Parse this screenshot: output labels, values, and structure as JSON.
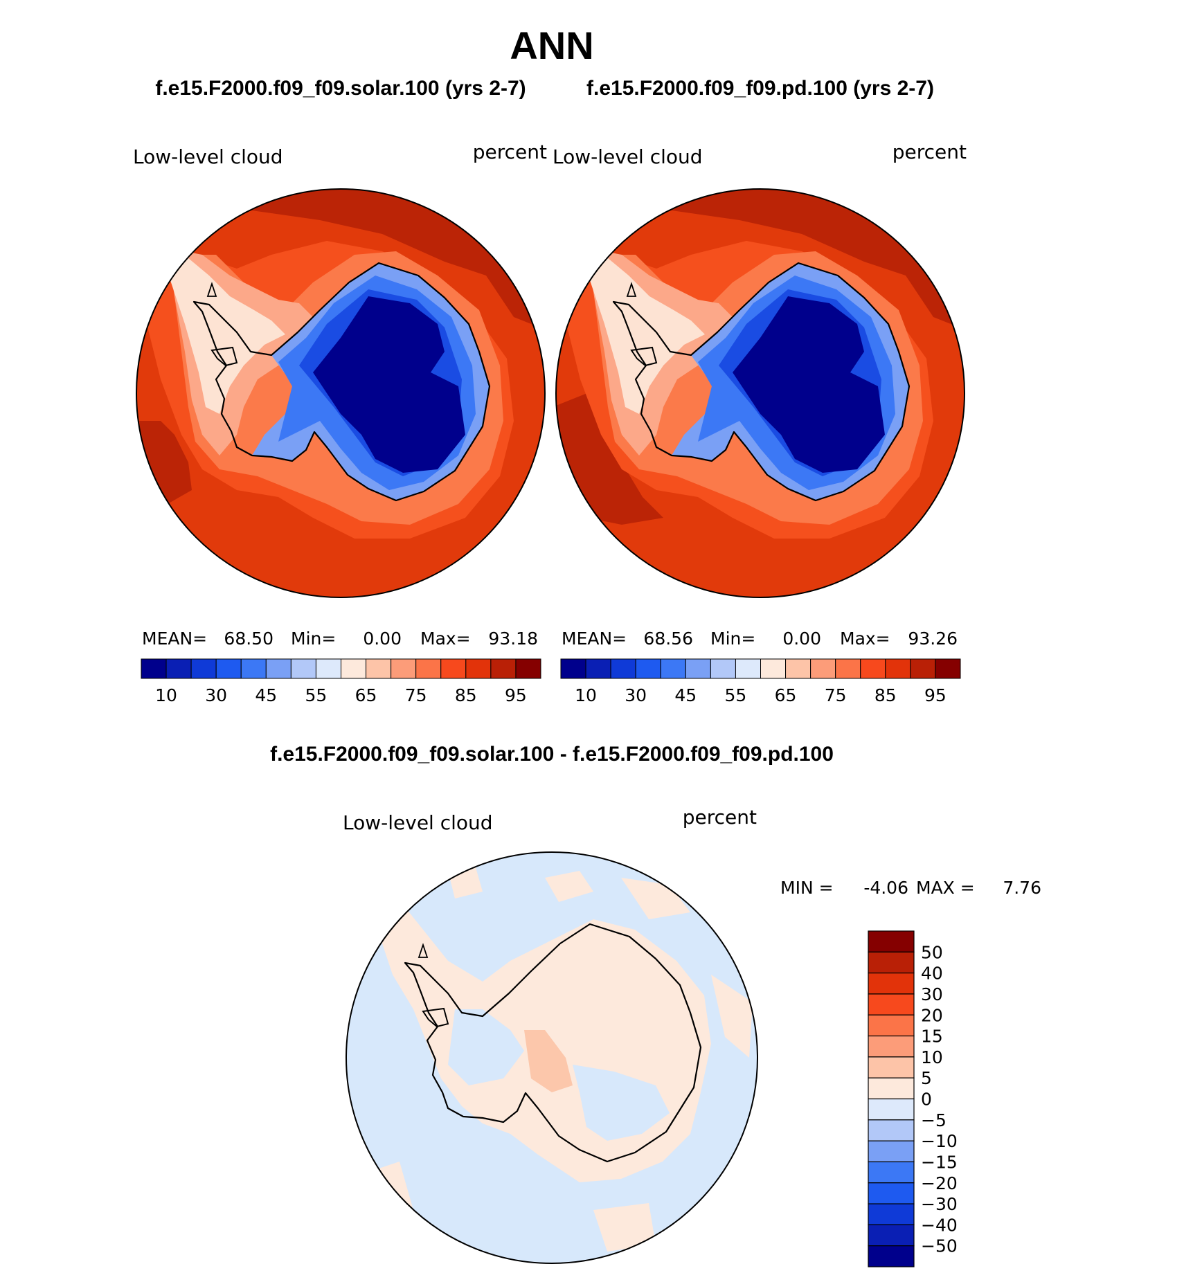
{
  "title": "ANN",
  "panels": [
    {
      "case_label": "f.e15.F2000.f09_f09.solar.100 (yrs 2-7)",
      "variable": "Low-level cloud",
      "units": "percent",
      "stats": {
        "mean_label": "MEAN=",
        "mean": "68.50",
        "min_label": "Min=",
        "min": "0.00",
        "max_label": "Max=",
        "max": "93.18"
      }
    },
    {
      "case_label": "f.e15.F2000.f09_f09.pd.100 (yrs 2-7)",
      "variable": "Low-level cloud",
      "units": "percent",
      "stats": {
        "mean_label": "MEAN=",
        "mean": "68.56",
        "min_label": "Min=",
        "min": "0.00",
        "max_label": "Max=",
        "max": "93.26"
      }
    }
  ],
  "mean_colorbar": {
    "colors": [
      "#00008c",
      "#0a1fb4",
      "#0f3ad7",
      "#1e5af0",
      "#3c78f5",
      "#7aa0f5",
      "#b2c8f8",
      "#dde9fb",
      "#fde9dc",
      "#fdc4a8",
      "#fc9c79",
      "#fb7448",
      "#f7491d",
      "#e2330a",
      "#b92006",
      "#850000"
    ],
    "tick_labels": [
      "10",
      "30",
      "45",
      "55",
      "65",
      "75",
      "85",
      "95"
    ]
  },
  "diff": {
    "title": "f.e15.F2000.f09_f09.solar.100 - f.e15.F2000.f09_f09.pd.100",
    "variable": "Low-level cloud",
    "units": "percent",
    "min_label": "MIN =",
    "min": "-4.06",
    "max_label": "MAX =",
    "max": "7.76",
    "colorbar": {
      "colors_top_to_bottom": [
        "#850000",
        "#b92006",
        "#e2330a",
        "#f7491d",
        "#fb7448",
        "#fc9c79",
        "#fdc4a8",
        "#fde9dc",
        "#dde9fb",
        "#b2c8f8",
        "#7aa0f5",
        "#3c78f5",
        "#1e5af0",
        "#0f3ad7",
        "#0a1fb4",
        "#00008c"
      ],
      "levels": [
        "50",
        "40",
        "30",
        "20",
        "15",
        "10",
        "5",
        "0",
        "−5",
        "−10",
        "−15",
        "−20",
        "−30",
        "−40",
        "−50"
      ]
    }
  },
  "map_colors": {
    "ocean_main": "#e13a0b",
    "ocean_dark": "#bb2406",
    "ocean_mid": "#f5501d",
    "coast_warm": "#fb7a4a",
    "coast_light": "#fca889",
    "coast_pale": "#fde3d3",
    "land_edge": "#7aa0f5",
    "land_mid": "#3c78f5",
    "land_inner": "#1a4ce3",
    "land_core": "#00008c",
    "diff_neg": "#d7e8fb",
    "diff_pos": "#fde9dc",
    "diff_pos2": "#fcc7ab"
  }
}
